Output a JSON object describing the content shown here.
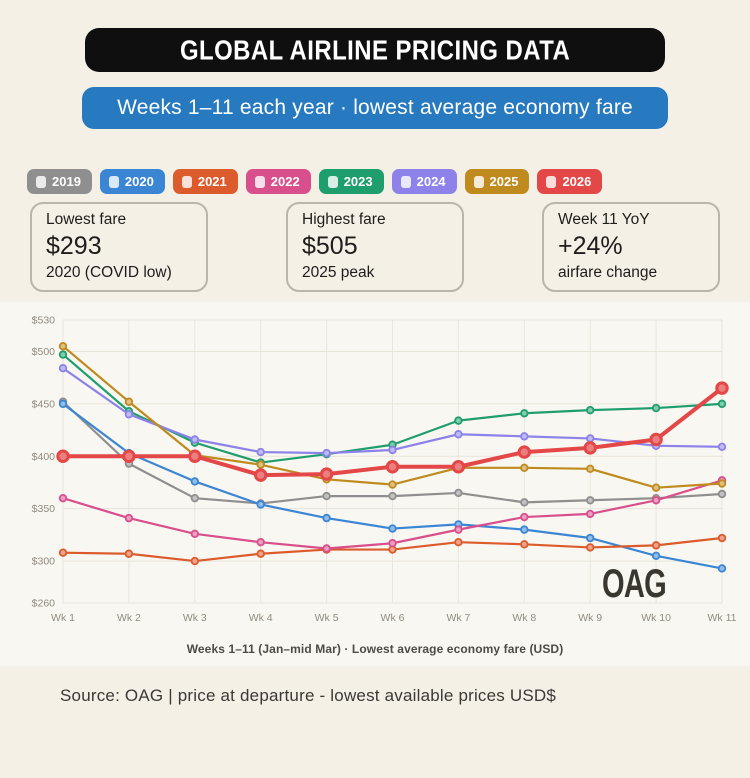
{
  "header": {
    "title": "GLOBAL AIRLINE PRICING DATA",
    "subtitle": "Weeks 1–11 each year · lowest average economy fare",
    "title_bg": "#0f0f0f",
    "subtitle_bg": "#2779c0"
  },
  "legend": {
    "items": [
      {
        "label": "2019",
        "color": "#8f8f8f"
      },
      {
        "label": "2020",
        "color": "#3a86d4"
      },
      {
        "label": "2021",
        "color": "#dc5b2c"
      },
      {
        "label": "2022",
        "color": "#d84f8c"
      },
      {
        "label": "2023",
        "color": "#1f9e6d"
      },
      {
        "label": "2024",
        "color": "#8c82e9"
      },
      {
        "label": "2025",
        "color": "#bf8b1e"
      },
      {
        "label": "2026",
        "color": "#e34747"
      }
    ]
  },
  "cards": [
    {
      "label": "Lowest fare",
      "value": "$293",
      "sub": "2020 (COVID low)"
    },
    {
      "label": "Highest fare",
      "value": "$505",
      "sub": "2025 peak"
    },
    {
      "label": "Week 11 YoY",
      "value": "+24%",
      "sub": "airfare change"
    }
  ],
  "chart_data": {
    "type": "line",
    "x_labels": [
      "Wk 1",
      "Wk 2",
      "Wk 3",
      "Wk 4",
      "Wk 5",
      "Wk 6",
      "Wk 7",
      "Wk 8",
      "Wk 9",
      "Wk 10",
      "Wk 11"
    ],
    "ylim": [
      260,
      530
    ],
    "yticks": [
      260,
      300,
      350,
      400,
      450,
      500,
      530
    ],
    "ytick_prefix": "$",
    "grid": true,
    "series": [
      {
        "name": "2019",
        "color": "#8f8f8f",
        "emphasis": false,
        "values": [
          452,
          393,
          360,
          355,
          362,
          362,
          365,
          356,
          358,
          360,
          364
        ]
      },
      {
        "name": "2020",
        "color": "#3a86d4",
        "emphasis": false,
        "values": [
          450,
          403,
          376,
          354,
          341,
          331,
          335,
          330,
          322,
          305,
          293
        ]
      },
      {
        "name": "2021",
        "color": "#dc5b2c",
        "emphasis": false,
        "values": [
          308,
          307,
          300,
          307,
          311,
          311,
          318,
          316,
          313,
          315,
          322
        ]
      },
      {
        "name": "2022",
        "color": "#d84f8c",
        "emphasis": false,
        "values": [
          360,
          341,
          326,
          318,
          312,
          317,
          330,
          342,
          345,
          358,
          377
        ]
      },
      {
        "name": "2023",
        "color": "#1f9e6d",
        "emphasis": false,
        "values": [
          497,
          443,
          413,
          394,
          402,
          411,
          434,
          441,
          444,
          446,
          450
        ]
      },
      {
        "name": "2024",
        "color": "#8c82e9",
        "emphasis": false,
        "values": [
          484,
          440,
          416,
          404,
          403,
          406,
          421,
          419,
          417,
          410,
          409
        ]
      },
      {
        "name": "2025",
        "color": "#bf8b1e",
        "emphasis": false,
        "values": [
          505,
          452,
          401,
          392,
          378,
          373,
          389,
          389,
          388,
          370,
          374
        ]
      },
      {
        "name": "2026",
        "color": "#e34747",
        "emphasis": true,
        "values": [
          400,
          400,
          400,
          382,
          383,
          390,
          390,
          404,
          408,
          416,
          465
        ]
      }
    ],
    "caption": "Weeks 1–11 (Jan–mid Mar) · Lowest average economy fare (USD)",
    "watermark": "OAG",
    "legend_position": "top"
  },
  "footer": {
    "source": "Source: OAG | price at departure - lowest available prices USD$"
  }
}
